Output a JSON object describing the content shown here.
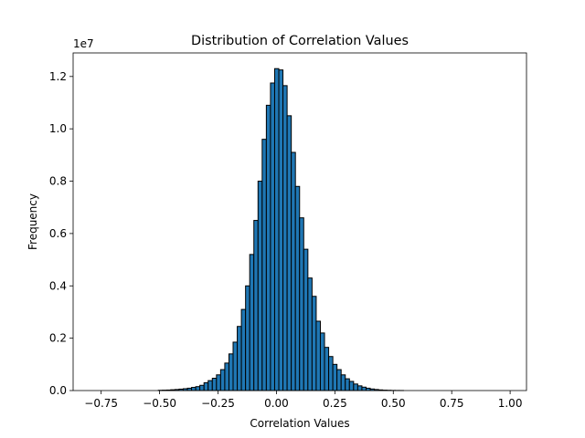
{
  "chart_data": {
    "type": "bar",
    "title": "Distribution of Correlation Values",
    "xlabel": "Correlation Values",
    "ylabel": "Frequency",
    "y_offset_label": "1e7",
    "xlim": [
      -0.87,
      1.07
    ],
    "ylim": [
      0,
      12900000
    ],
    "x_ticks": [
      -0.75,
      -0.5,
      -0.25,
      0.0,
      0.25,
      0.5,
      0.75,
      1.0
    ],
    "x_tick_labels": [
      "−0.75",
      "−0.50",
      "−0.25",
      "0.00",
      "0.25",
      "0.50",
      "0.75",
      "1.00"
    ],
    "y_ticks": [
      0,
      2000000,
      4000000,
      6000000,
      8000000,
      10000000,
      12000000
    ],
    "y_tick_labels": [
      "0.0",
      "0.2",
      "0.4",
      "0.6",
      "0.8",
      "1.0",
      "1.2"
    ],
    "grid": false,
    "bin_start": -0.79,
    "bin_width": 0.01778,
    "values": [
      0,
      0,
      0,
      0,
      0,
      0,
      0,
      0,
      0,
      0,
      0,
      0,
      0,
      0,
      0,
      0,
      10000,
      15000,
      20000,
      30000,
      40000,
      55000,
      70000,
      90000,
      120000,
      150000,
      200000,
      300000,
      380000,
      470000,
      600000,
      800000,
      1050000,
      1400000,
      1850000,
      2450000,
      3100000,
      4000000,
      5200000,
      6500000,
      8000000,
      9600000,
      10900000,
      11750000,
      12300000,
      12250000,
      11650000,
      10500000,
      9100000,
      7800000,
      6600000,
      5400000,
      4300000,
      3600000,
      2650000,
      2200000,
      1650000,
      1300000,
      1000000,
      800000,
      600000,
      450000,
      350000,
      250000,
      180000,
      130000,
      90000,
      60000,
      40000,
      25000,
      15000,
      10000,
      5000,
      3000,
      2000,
      0,
      0,
      0,
      0,
      0,
      0,
      0,
      0,
      0,
      0,
      0,
      0,
      0,
      0,
      0,
      0,
      0,
      0,
      0,
      0,
      0,
      0,
      0,
      0,
      0
    ]
  }
}
